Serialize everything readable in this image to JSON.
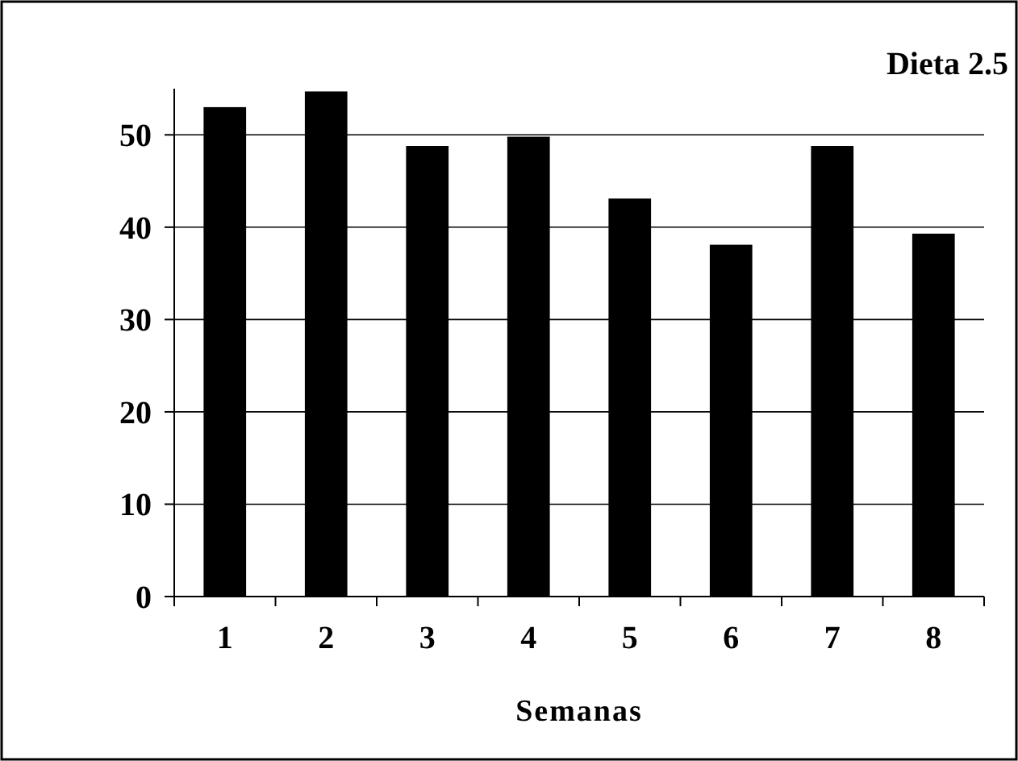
{
  "chart_data": {
    "type": "bar",
    "title": "Dieta 2.5",
    "xlabel": "Semanas",
    "categories": [
      "1",
      "2",
      "3",
      "4",
      "5",
      "6",
      "7",
      "8"
    ],
    "values": [
      53,
      54.7,
      48.8,
      49.8,
      43.1,
      38.1,
      48.8,
      39.3
    ],
    "color": "#000000",
    "ylim": [
      0,
      55
    ],
    "yticks": [
      0,
      10,
      20,
      30,
      40,
      50
    ],
    "grid": "y"
  }
}
